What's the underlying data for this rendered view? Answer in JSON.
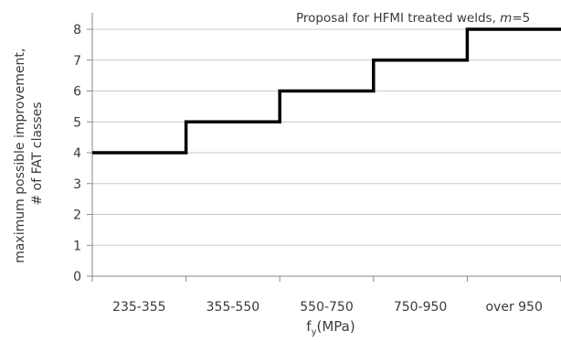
{
  "chart_data": {
    "type": "line",
    "step": true,
    "categories": [
      "235-355",
      "355-550",
      "550-750",
      "750-950",
      "over 950"
    ],
    "series": [
      {
        "name": "Proposal for HFMI treated welds, m=5",
        "values": [
          4,
          5,
          6,
          7,
          8
        ]
      }
    ],
    "ylabel_line1": "maximum possible improvement,",
    "ylabel_line2": "# of FAT classes",
    "xlabel_main": "f",
    "xlabel_sub": "y",
    "xlabel_unit": "(MPa)",
    "legend_prefix": "Proposal for HFMI treated welds, ",
    "legend_m": "m",
    "legend_suffix": "=5",
    "ylim": [
      0,
      8
    ],
    "yticks": [
      "0",
      "1",
      "2",
      "3",
      "4",
      "5",
      "6",
      "7",
      "8"
    ],
    "grid": true,
    "legend_position": "top-right",
    "colors": {
      "line": "#000000",
      "grid": "#c8c8c8",
      "axis": "#8a8a8a"
    }
  }
}
